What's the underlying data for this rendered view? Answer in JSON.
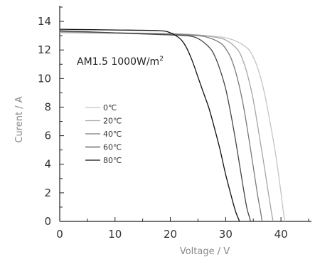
{
  "chart_data": {
    "type": "line",
    "xlabel": "Voltage / V",
    "ylabel": "Curent / A",
    "xlim": [
      0,
      45
    ],
    "ylim": [
      0,
      15
    ],
    "xticks": [
      0,
      10,
      20,
      30,
      40
    ],
    "yticks": [
      0,
      2,
      4,
      6,
      8,
      10,
      12,
      14
    ],
    "grid": false,
    "legend_position": "center-left",
    "annotation": {
      "main": "AM1.5 1000W/m",
      "sup": "2"
    },
    "series": [
      {
        "name": "0℃",
        "color": "#c4c4c4",
        "x": [
          0,
          10,
          20,
          25,
          28,
          30,
          32,
          34,
          35,
          36,
          37,
          38,
          39,
          39.8,
          40.4,
          40.7
        ],
        "y": [
          13.2,
          13.15,
          13.1,
          13.05,
          12.95,
          12.85,
          12.6,
          12.1,
          11.5,
          10.5,
          9.0,
          7.0,
          4.8,
          2.6,
          0.8,
          0
        ]
      },
      {
        "name": "20℃",
        "color": "#a6a6a6",
        "x": [
          0,
          10,
          20,
          25,
          28,
          30,
          32,
          33,
          34,
          35,
          36,
          37,
          37.8,
          38.3,
          38.6
        ],
        "y": [
          13.25,
          13.2,
          13.15,
          13.05,
          12.9,
          12.7,
          12.1,
          11.4,
          10.2,
          8.5,
          6.2,
          3.8,
          1.8,
          0.6,
          0
        ]
      },
      {
        "name": "40℃",
        "color": "#7a7a7a",
        "x": [
          0,
          10,
          20,
          25,
          27,
          29,
          30,
          31,
          32,
          33,
          34,
          35,
          35.8,
          36.4,
          36.6
        ],
        "y": [
          13.3,
          13.2,
          13.1,
          13.0,
          12.85,
          12.5,
          12.1,
          11.4,
          10.2,
          8.5,
          6.3,
          3.8,
          1.8,
          0.5,
          0
        ]
      },
      {
        "name": "60℃",
        "color": "#454545",
        "x": [
          0,
          10,
          20,
          23,
          25,
          27,
          28,
          29,
          30,
          31,
          32,
          33,
          33.8,
          34.3,
          34.5
        ],
        "y": [
          13.35,
          13.2,
          13.05,
          13.0,
          12.8,
          12.2,
          11.6,
          10.6,
          9.3,
          7.4,
          5.2,
          2.8,
          1.0,
          0.3,
          0
        ]
      },
      {
        "name": "80℃",
        "color": "#111111",
        "x": [
          0,
          10,
          18,
          20,
          21,
          22,
          23,
          24,
          25,
          26,
          27,
          28,
          29,
          30,
          31,
          31.8,
          32.3,
          32.5
        ],
        "y": [
          13.45,
          13.4,
          13.35,
          13.2,
          13.0,
          12.7,
          12.1,
          11.2,
          10.1,
          9.0,
          7.9,
          6.5,
          5.0,
          3.3,
          1.8,
          0.7,
          0.2,
          0
        ]
      }
    ]
  }
}
